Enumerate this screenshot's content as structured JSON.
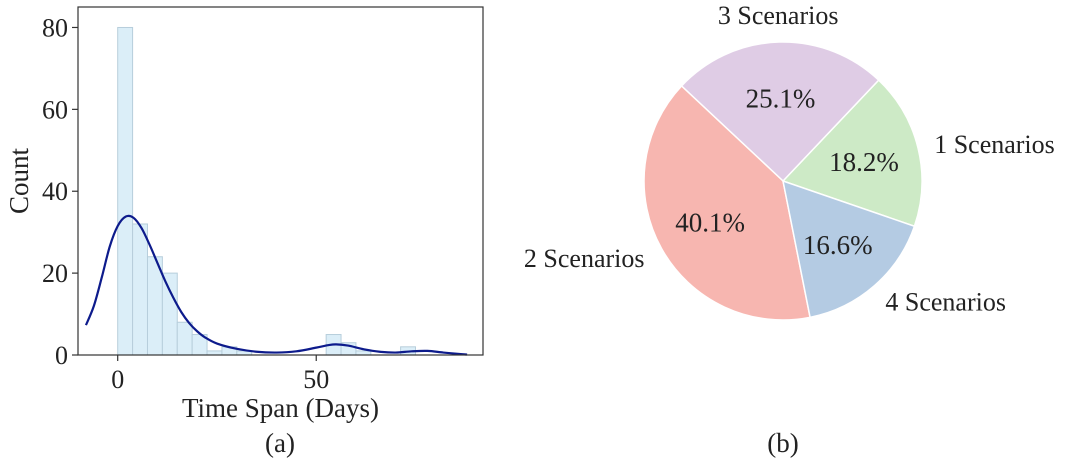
{
  "chart_data": [
    {
      "type": "bar",
      "subtype": "histogram_with_kde",
      "caption": "(a)",
      "xlabel": "Time Span (Days)",
      "ylabel": "Count",
      "xlim": [
        -10,
        92
      ],
      "ylim": [
        0,
        85
      ],
      "xticks": [
        0,
        50
      ],
      "yticks": [
        0,
        20,
        40,
        60,
        80
      ],
      "bin_width": 3.75,
      "bin_start": 0,
      "bars": [
        {
          "x": 0,
          "value": 80
        },
        {
          "x": 3.75,
          "value": 32
        },
        {
          "x": 7.5,
          "value": 24
        },
        {
          "x": 11.25,
          "value": 20
        },
        {
          "x": 15,
          "value": 8
        },
        {
          "x": 18.75,
          "value": 5
        },
        {
          "x": 22.5,
          "value": 1
        },
        {
          "x": 26.25,
          "value": 2
        },
        {
          "x": 30,
          "value": 1
        },
        {
          "x": 33.75,
          "value": 0
        },
        {
          "x": 37.5,
          "value": 0
        },
        {
          "x": 41.25,
          "value": 0
        },
        {
          "x": 45,
          "value": 0
        },
        {
          "x": 48.75,
          "value": 0
        },
        {
          "x": 52.5,
          "value": 5
        },
        {
          "x": 56.25,
          "value": 3
        },
        {
          "x": 60,
          "value": 1
        },
        {
          "x": 63.75,
          "value": 0
        },
        {
          "x": 67.5,
          "value": 0
        },
        {
          "x": 71.25,
          "value": 2
        }
      ],
      "kde": {
        "x": [
          -8,
          -6,
          -4,
          -2,
          0,
          2,
          4,
          6,
          8,
          10,
          12,
          14,
          16,
          18,
          20,
          22,
          25,
          30,
          35,
          40,
          45,
          50,
          53,
          55,
          58,
          62,
          66,
          70,
          74,
          78,
          82,
          86,
          88
        ],
        "y": [
          7.3,
          12,
          19,
          26.5,
          31.5,
          33.8,
          33.5,
          31,
          27,
          22.5,
          18,
          14,
          10.5,
          7.8,
          5.8,
          4.3,
          2.8,
          1.5,
          0.8,
          0.6,
          0.9,
          1.8,
          2.4,
          2.6,
          2.3,
          1.4,
          0.8,
          0.6,
          0.9,
          1,
          0.6,
          0.25,
          0.1
        ]
      },
      "colors": {
        "bar_fill": "#dbeef8",
        "bar_edge": "#b7cedb",
        "kde_line": "#0d1b8c"
      },
      "grid": false
    },
    {
      "type": "pie",
      "caption": "(b)",
      "slices": [
        {
          "label": "1 Scenarios",
          "value": 18.2,
          "pct_text": "18.2%",
          "color": "#cdeac6"
        },
        {
          "label": "3 Scenarios",
          "value": 25.1,
          "pct_text": "25.1%",
          "color": "#dfcce5"
        },
        {
          "label": "2 Scenarios",
          "value": 40.1,
          "pct_text": "40.1%",
          "color": "#f7b6b0"
        },
        {
          "label": "4 Scenarios",
          "value": 16.6,
          "pct_text": "16.6%",
          "color": "#b4cbe3"
        }
      ],
      "start_angle_deg": -19,
      "direction": "counterclockwise"
    }
  ]
}
